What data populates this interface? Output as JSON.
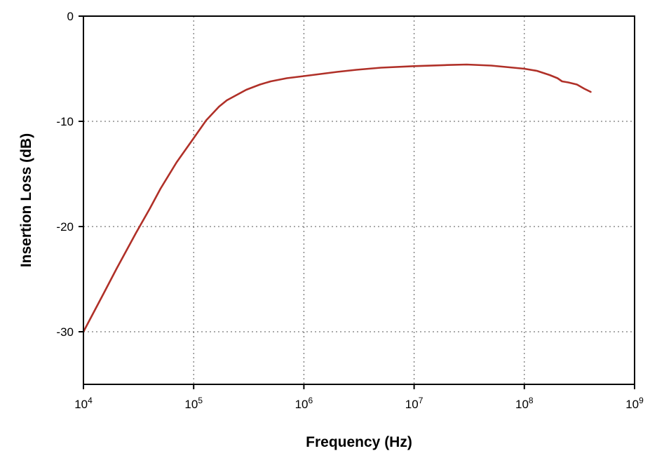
{
  "chart_data": {
    "type": "line",
    "xlabel": "Frequency (Hz)",
    "ylabel": "Insertion Loss (dB)",
    "x_scale": "log",
    "xlim": [
      10000,
      1000000000
    ],
    "ylim": [
      -35,
      0
    ],
    "x_ticks": [
      {
        "base": "10",
        "exp": "4",
        "value": 10000
      },
      {
        "base": "10",
        "exp": "5",
        "value": 100000
      },
      {
        "base": "10",
        "exp": "6",
        "value": 1000000
      },
      {
        "base": "10",
        "exp": "7",
        "value": 10000000
      },
      {
        "base": "10",
        "exp": "8",
        "value": 100000000
      },
      {
        "base": "10",
        "exp": "9",
        "value": 1000000000
      }
    ],
    "y_ticks": [
      {
        "label": "0",
        "value": 0
      },
      {
        "label": "-10",
        "value": -10
      },
      {
        "label": "-20",
        "value": -20
      },
      {
        "label": "-30",
        "value": -30
      }
    ],
    "grid": true,
    "series": [
      {
        "color": "#b03028",
        "x": [
          10000,
          15000,
          20000,
          30000,
          40000,
          50000,
          70000,
          100000,
          130000,
          170000,
          200000,
          300000,
          400000,
          500000,
          700000,
          1000000,
          2000000,
          3000000,
          5000000,
          10000000,
          20000000,
          30000000,
          50000000,
          100000000,
          130000000,
          170000000,
          200000000,
          220000000,
          250000000,
          300000000,
          350000000,
          400000000
        ],
        "y": [
          -30,
          -26.5,
          -24,
          -20.6,
          -18.3,
          -16.4,
          -13.9,
          -11.6,
          -9.9,
          -8.6,
          -8.0,
          -7.0,
          -6.5,
          -6.2,
          -5.9,
          -5.7,
          -5.3,
          -5.1,
          -4.9,
          -4.75,
          -4.65,
          -4.6,
          -4.7,
          -5.0,
          -5.2,
          -5.6,
          -5.9,
          -6.2,
          -6.3,
          -6.5,
          -6.9,
          -7.2
        ]
      }
    ]
  }
}
